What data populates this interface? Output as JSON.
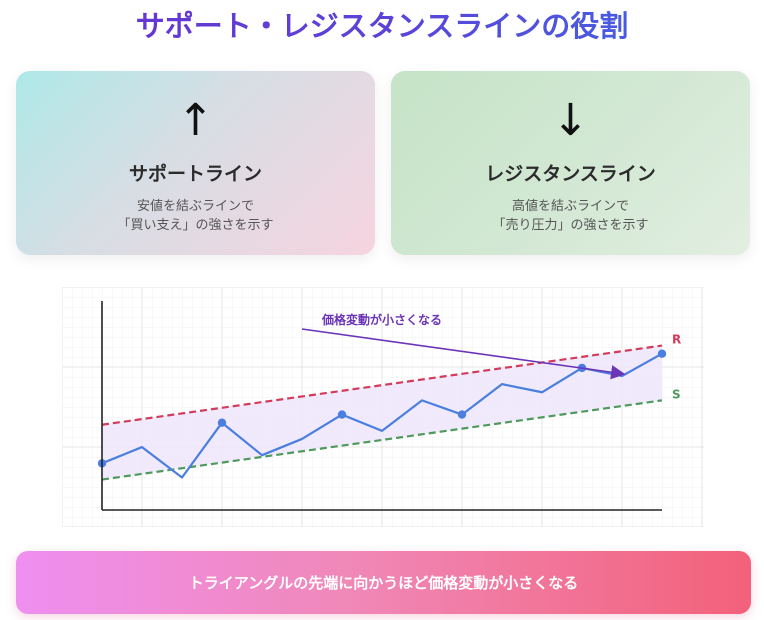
{
  "title": "サポート・レジスタンスラインの役割",
  "cards": {
    "support": {
      "arrow": "↑",
      "name": "サポートライン",
      "desc_line1": "安値を結ぶラインで",
      "desc_line2": "「買い支え」の強さを示す"
    },
    "resistance": {
      "arrow": "↓",
      "name": "レジスタンスライン",
      "desc_line1": "高値を結ぶラインで",
      "desc_line2": "「売り圧力」の強さを示す"
    }
  },
  "chart_data": {
    "type": "line",
    "annotation": "価格変動が小さくなる",
    "xlim": [
      0,
      14
    ],
    "ylim": [
      0,
      100
    ],
    "price": {
      "x": [
        0,
        1,
        2,
        3,
        4,
        5,
        6,
        7,
        8,
        9,
        10,
        11,
        12,
        13,
        14
      ],
      "y": [
        23,
        31,
        16,
        43,
        27,
        35,
        47,
        39,
        54,
        47,
        62,
        58,
        70,
        66,
        77
      ],
      "markers": [
        0,
        3,
        6,
        9,
        12,
        14
      ]
    },
    "resistance": {
      "label": "R",
      "start": 42,
      "end": 81,
      "color": "#d23c5a"
    },
    "support": {
      "label": "S",
      "start": 15,
      "end": 54,
      "color": "#4e9a5c"
    },
    "colors": {
      "price": "#4a7fe0",
      "annotation": "#6b35b8",
      "fill": "#efe6fb"
    }
  },
  "banner": "トライアングルの先端に向かうほど価格変動が小さくなる"
}
